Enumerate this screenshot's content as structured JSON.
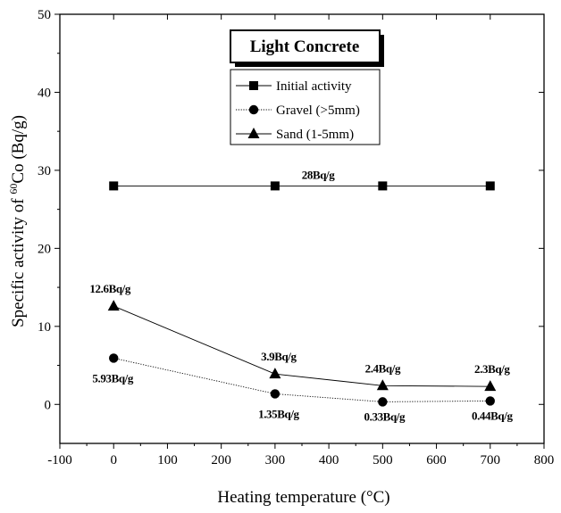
{
  "chart_data": {
    "type": "line",
    "title": "Light Concrete",
    "xlabel": "Heating temperature (°C)",
    "ylabel_parts": {
      "prefix": "Specific activity of ",
      "sup": "60",
      "suffix": "Co (Bq/g)"
    },
    "xlim": [
      -100,
      800
    ],
    "ylim": [
      -5,
      50
    ],
    "x_ticks": [
      -100,
      0,
      100,
      200,
      300,
      400,
      500,
      600,
      700,
      800
    ],
    "y_ticks": [
      0,
      10,
      20,
      30,
      40,
      50
    ],
    "grid": false,
    "legend_position": "top-center",
    "series": [
      {
        "name": "Initial activity",
        "marker": "square",
        "line_style": "solid",
        "x": [
          0,
          300,
          500,
          700
        ],
        "y": [
          28,
          28,
          28,
          28
        ]
      },
      {
        "name": "Gravel (>5mm)",
        "marker": "circle",
        "line_style": "dotted",
        "x": [
          0,
          300,
          500,
          700
        ],
        "y": [
          5.93,
          1.35,
          0.33,
          0.44
        ]
      },
      {
        "name": "Sand (1-5mm)",
        "marker": "triangle",
        "line_style": "solid",
        "x": [
          0,
          300,
          500,
          700
        ],
        "y": [
          12.6,
          3.9,
          2.4,
          2.3
        ]
      }
    ],
    "annotations": [
      {
        "text": "28Bq/g",
        "x": 380,
        "y": 28
      },
      {
        "text": "12.6Bq/g",
        "x": 0,
        "y": 12.6
      },
      {
        "text": "5.93Bq/g",
        "x": 0,
        "y": 5.93
      },
      {
        "text": "3.9Bq/g",
        "x": 300,
        "y": 3.9
      },
      {
        "text": "1.35Bq/g",
        "x": 300,
        "y": 1.35
      },
      {
        "text": "2.4Bq/g",
        "x": 500,
        "y": 2.4
      },
      {
        "text": "0.33Bq/g",
        "x": 500,
        "y": 0.33
      },
      {
        "text": "2.3Bq/g",
        "x": 700,
        "y": 2.3
      },
      {
        "text": "0.44Bq/g",
        "x": 700,
        "y": 0.44
      }
    ]
  }
}
